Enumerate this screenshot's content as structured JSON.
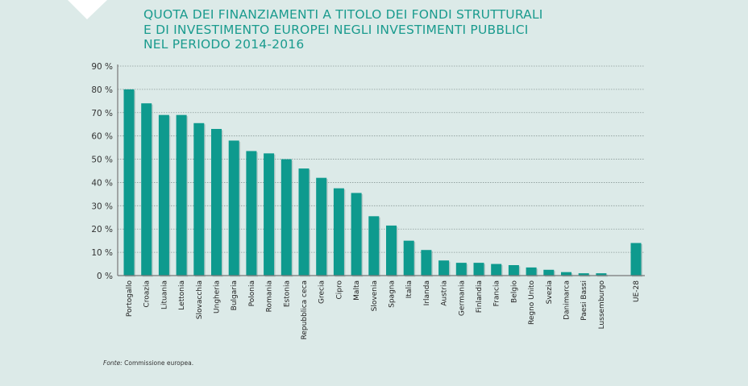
{
  "chart_data": {
    "type": "bar",
    "title_lines": [
      "QUOTA DEI FINANZIAMENTI A TITOLO DEI FONDI STRUTTURALI",
      "E DI INVESTIMENTO EUROPEI NEGLI INVESTIMENTI PUBBLICI",
      "NEL PERIODO 2014-2016"
    ],
    "xlabel": "",
    "ylabel": "",
    "ylim": [
      0,
      90
    ],
    "yticks": [
      0,
      10,
      20,
      30,
      40,
      50,
      60,
      70,
      80,
      90
    ],
    "ytick_labels": [
      "0 %",
      "10 %",
      "20 %",
      "30 %",
      "40 %",
      "50 %",
      "60 %",
      "70 %",
      "80 %",
      "90 %"
    ],
    "grid": true,
    "categories": [
      "Portogallo",
      "Croazia",
      "Lituania",
      "Lettonia",
      "Slovacchia",
      "Ungheria",
      "Bulgaria",
      "Polonia",
      "Romania",
      "Estonia",
      "Repubblica ceca",
      "Grecia",
      "Cipro",
      "Malta",
      "Slovenia",
      "Spagna",
      "Italia",
      "Irlanda",
      "Austria",
      "Germania",
      "Finlandia",
      "Francia",
      "Belgio",
      "Regno Unito",
      "Svezia",
      "Danimarca",
      "Paesi Bassi",
      "Lussemburgo",
      "UE-28"
    ],
    "values": [
      80,
      74,
      69,
      69,
      65.5,
      63,
      58,
      53.5,
      52.5,
      50,
      46,
      42,
      37.5,
      35.5,
      25.5,
      21.5,
      15,
      11,
      6.5,
      5.5,
      5.5,
      5,
      4.5,
      3.5,
      2.5,
      1.5,
      1,
      1,
      14
    ],
    "bar_color": "#0e9a8e",
    "title_color": "#1a9b8e"
  },
  "source": {
    "label": "Fonte:",
    "text": "Commissione europea."
  }
}
